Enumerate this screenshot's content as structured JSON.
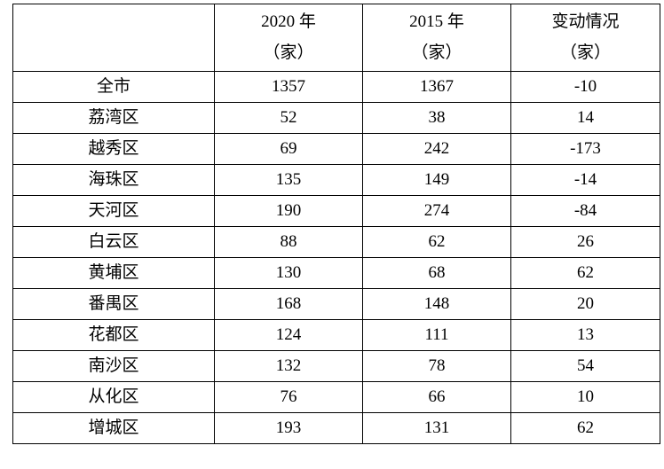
{
  "table": {
    "headers": [
      {
        "line1": "",
        "line2": ""
      },
      {
        "line1": "2020 年",
        "line2": "（家）"
      },
      {
        "line1": "2015 年",
        "line2": "（家）"
      },
      {
        "line1": "变动情况",
        "line2": "（家）"
      }
    ],
    "rows": [
      {
        "district": "全市",
        "y2020": "1357",
        "y2015": "1367",
        "change": "-10"
      },
      {
        "district": "荔湾区",
        "y2020": "52",
        "y2015": "38",
        "change": "14"
      },
      {
        "district": "越秀区",
        "y2020": "69",
        "y2015": "242",
        "change": "-173"
      },
      {
        "district": "海珠区",
        "y2020": "135",
        "y2015": "149",
        "change": "-14"
      },
      {
        "district": "天河区",
        "y2020": "190",
        "y2015": "274",
        "change": "-84"
      },
      {
        "district": "白云区",
        "y2020": "88",
        "y2015": "62",
        "change": "26"
      },
      {
        "district": "黄埔区",
        "y2020": "130",
        "y2015": "68",
        "change": "62"
      },
      {
        "district": "番禺区",
        "y2020": "168",
        "y2015": "148",
        "change": "20"
      },
      {
        "district": "花都区",
        "y2020": "124",
        "y2015": "111",
        "change": "13"
      },
      {
        "district": "南沙区",
        "y2020": "132",
        "y2015": "78",
        "change": "54"
      },
      {
        "district": "从化区",
        "y2020": "76",
        "y2015": "66",
        "change": "10"
      },
      {
        "district": "增城区",
        "y2020": "193",
        "y2015": "131",
        "change": "62"
      }
    ]
  }
}
